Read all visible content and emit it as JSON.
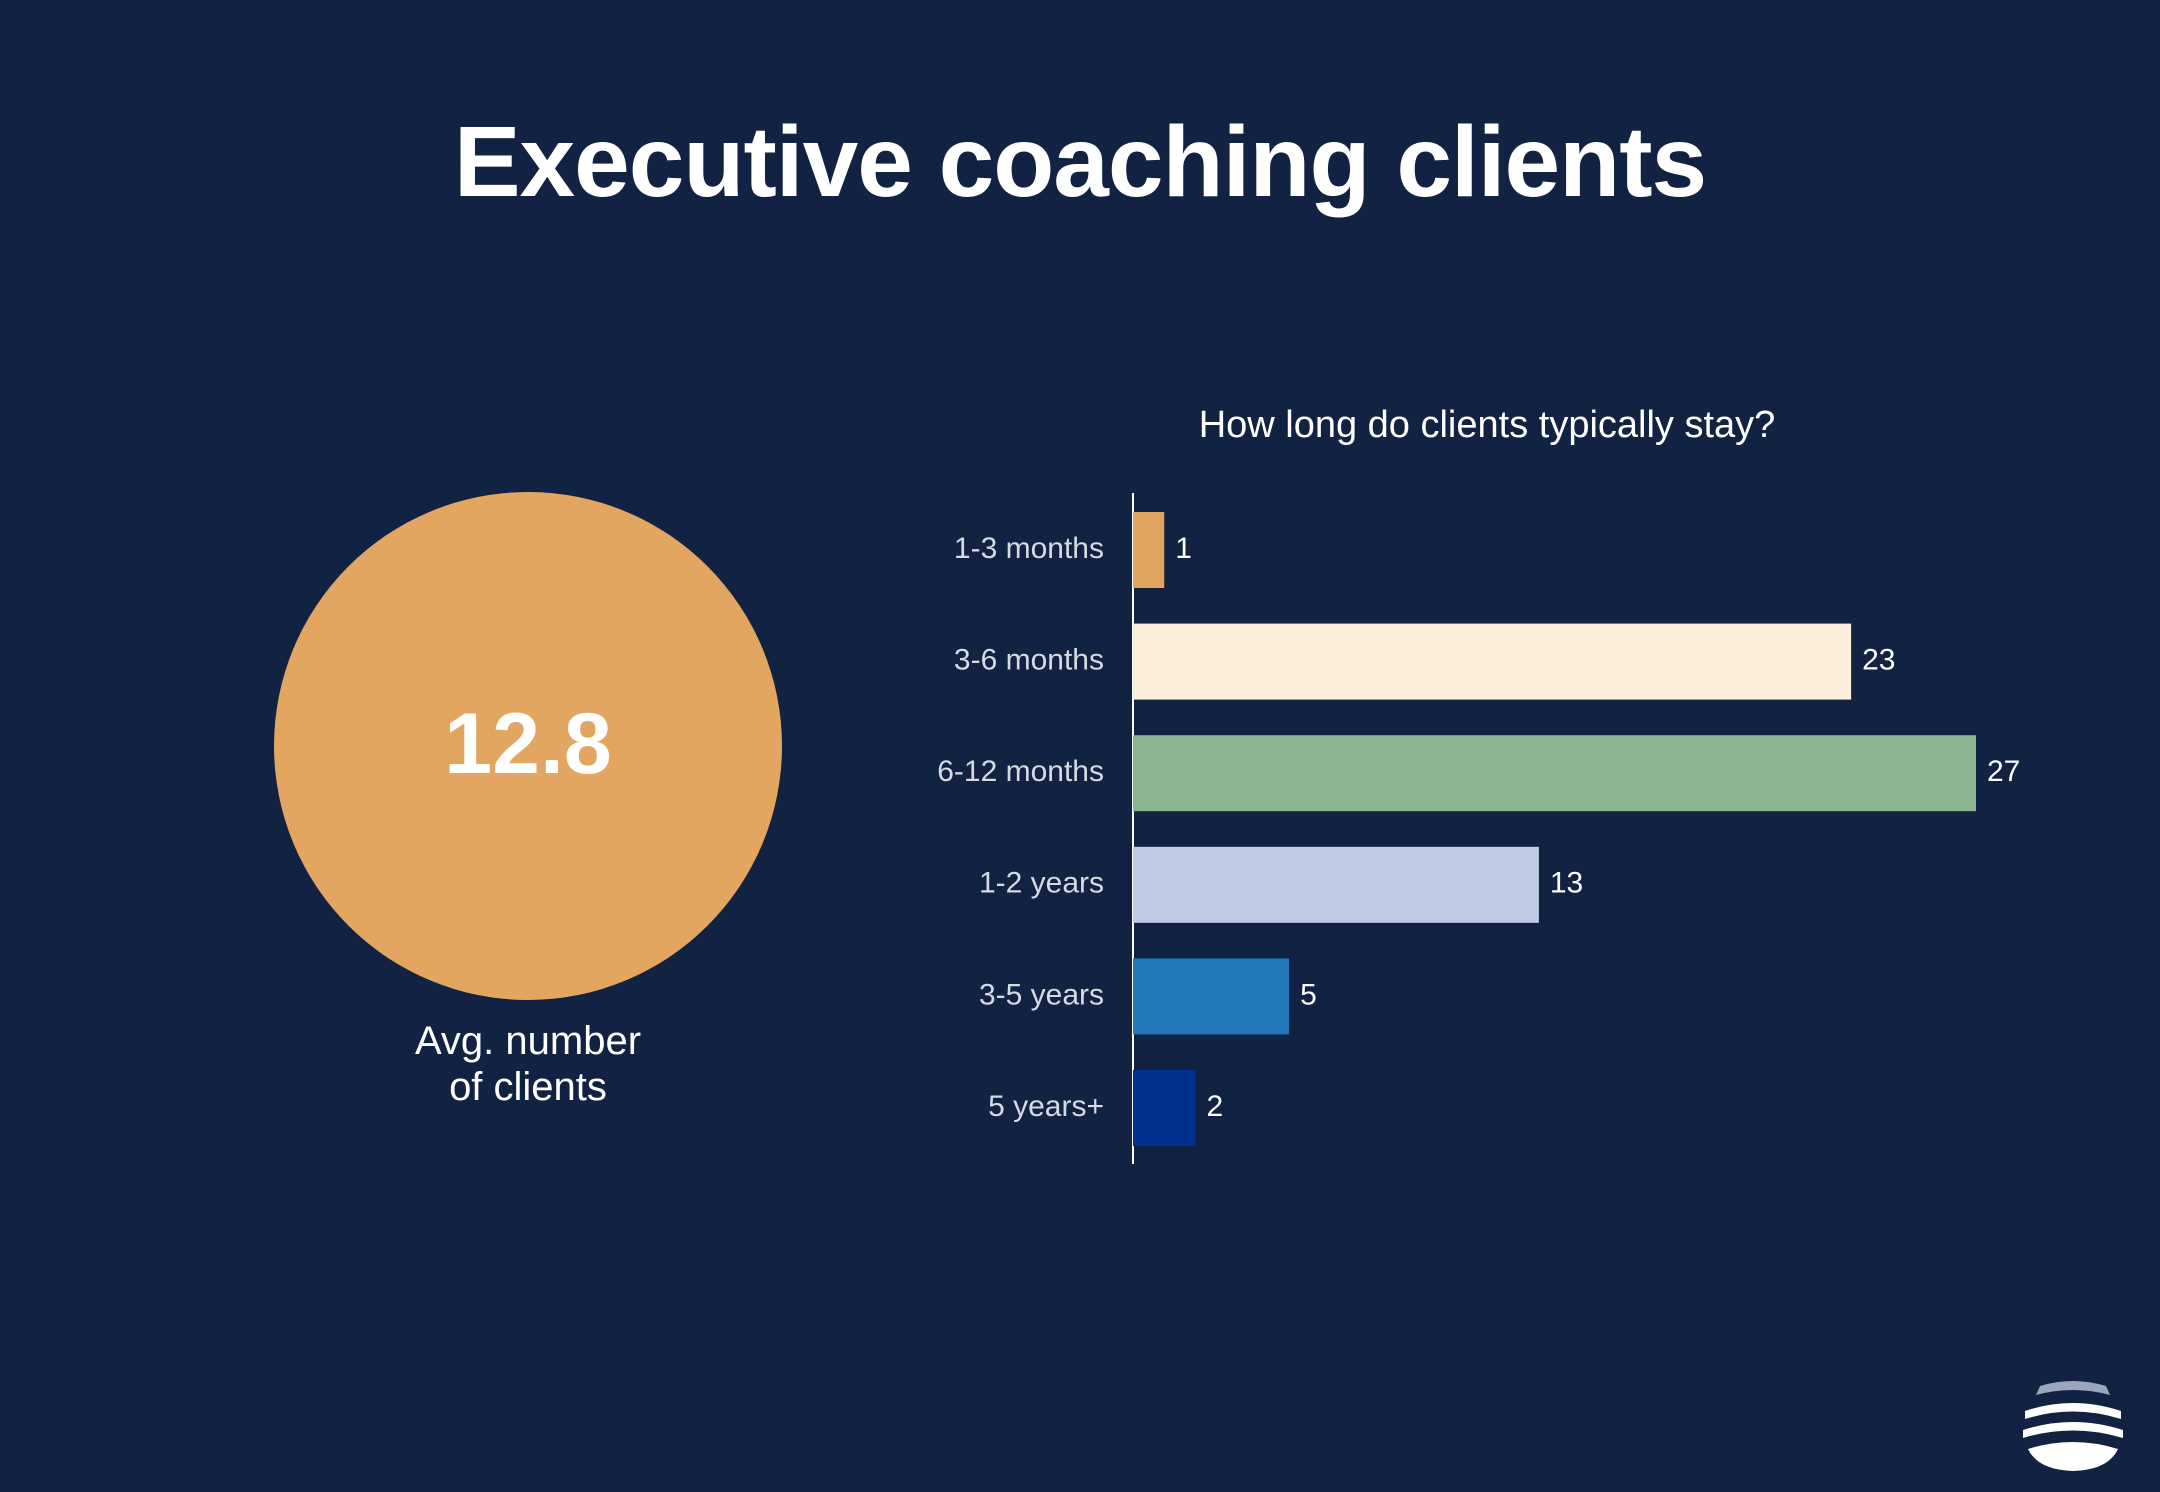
{
  "title": "Executive coaching clients",
  "kpi": {
    "value": "12.8",
    "label_line1": "Avg. number",
    "label_line2": "of clients"
  },
  "colors": {
    "background": "#112243",
    "kpi_circle": "#E2A660"
  },
  "logo": {
    "icon": "waves-logo-icon"
  },
  "chart_data": {
    "type": "bar",
    "orientation": "horizontal",
    "title": "How long do clients typically stay?",
    "categories": [
      "1-3 months",
      "3-6 months",
      "6-12 months",
      "1-2 years",
      "3-5 years",
      "5 years+"
    ],
    "values": [
      1,
      23,
      27,
      13,
      5,
      2
    ],
    "colors": [
      "#E2A660",
      "#FCEEDA",
      "#8BB591",
      "#C1CDE6",
      "#2278B9",
      "#013190"
    ],
    "xlim": [
      0,
      27
    ],
    "grid": false,
    "legend": "none",
    "data_labels": true
  }
}
